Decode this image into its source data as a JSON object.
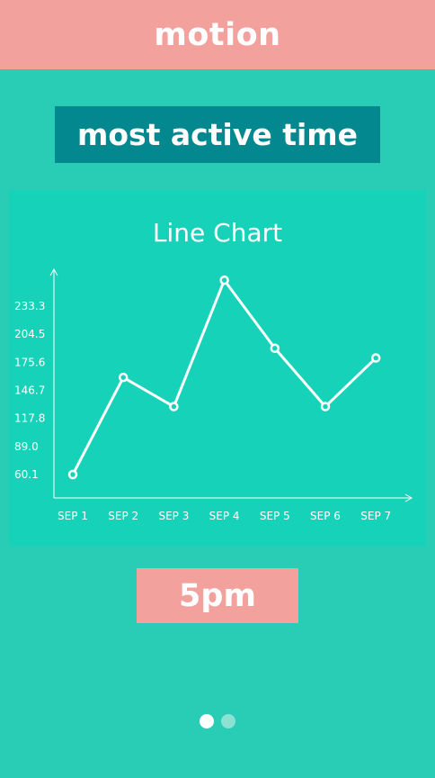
{
  "header": {
    "title": "motion"
  },
  "subtitle": {
    "label": "most active time"
  },
  "result": {
    "value": "5pm"
  },
  "pager": {
    "count": 2,
    "active_index": 0
  },
  "colors": {
    "header_bg": "#f3a19d",
    "subtitle_bg": "#04888f",
    "background": "#29cdb5",
    "chart_bg": "#15d2b8",
    "line": "#ffffff"
  },
  "chart_data": {
    "type": "line",
    "title": "Line Chart",
    "categories": [
      "SEP 1",
      "SEP 2",
      "SEP 3",
      "SEP 4",
      "SEP 5",
      "SEP 6",
      "SEP 7"
    ],
    "values": [
      60.1,
      160,
      130,
      260,
      190,
      130,
      180
    ],
    "y_ticks": [
      "60.1",
      "89.0",
      "117.8",
      "146.7",
      "175.6",
      "204.5",
      "233.3"
    ],
    "y_tick_values": [
      60.1,
      89.0,
      117.8,
      146.7,
      175.6,
      204.5,
      233.3
    ],
    "xlabel": "",
    "ylabel": "",
    "grid": false
  }
}
